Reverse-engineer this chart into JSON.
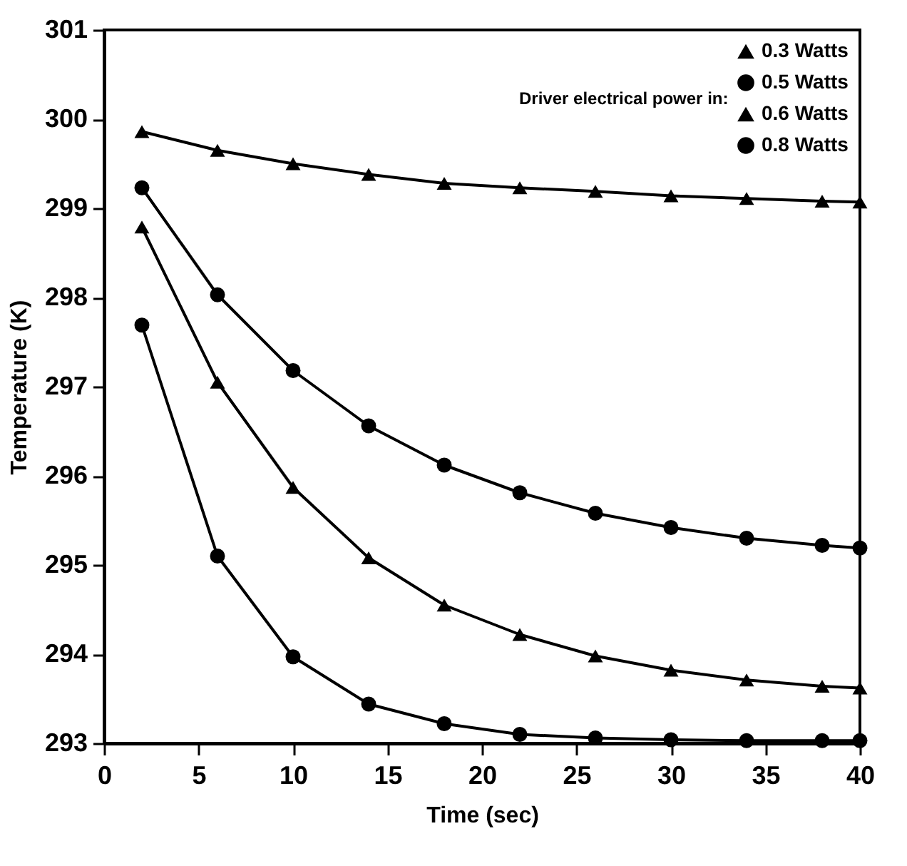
{
  "chart_data": {
    "type": "line",
    "xlabel": "Time (sec)",
    "ylabel": "Temperature (K)",
    "legend_title": "Driver electrical power in:",
    "x": [
      2,
      6,
      10,
      14,
      18,
      22,
      26,
      30,
      34,
      38,
      40
    ],
    "series": [
      {
        "name": "0.3 Watts",
        "color": "#000000",
        "marker": "triangle",
        "values": [
          299.86,
          299.65,
          299.5,
          299.38,
          299.28,
          299.23,
          299.19,
          299.14,
          299.11,
          299.08,
          299.07
        ]
      },
      {
        "name": "0.5 Watts",
        "color": "#000000",
        "marker": "circle",
        "values": [
          299.23,
          298.03,
          297.18,
          296.56,
          296.12,
          295.81,
          295.58,
          295.42,
          295.3,
          295.22,
          295.19
        ]
      },
      {
        "name": "0.6 Watts",
        "color": "#000000",
        "marker": "triangle",
        "values": [
          298.79,
          297.05,
          295.87,
          295.08,
          294.55,
          294.22,
          293.98,
          293.82,
          293.71,
          293.64,
          293.62
        ]
      },
      {
        "name": "0.8 Watts",
        "color": "#000000",
        "marker": "circle",
        "values": [
          297.69,
          295.1,
          293.97,
          293.44,
          293.22,
          293.1,
          293.06,
          293.04,
          293.03,
          293.03,
          293.03
        ]
      }
    ],
    "xlim": [
      0,
      40
    ],
    "xticks": [
      0,
      5,
      10,
      15,
      20,
      25,
      30,
      35,
      40
    ],
    "ylim": [
      293,
      301
    ],
    "yticks": [
      293,
      294,
      295,
      296,
      297,
      298,
      299,
      300,
      301
    ],
    "grid": false,
    "legend": "top right",
    "line_style": "solid"
  }
}
